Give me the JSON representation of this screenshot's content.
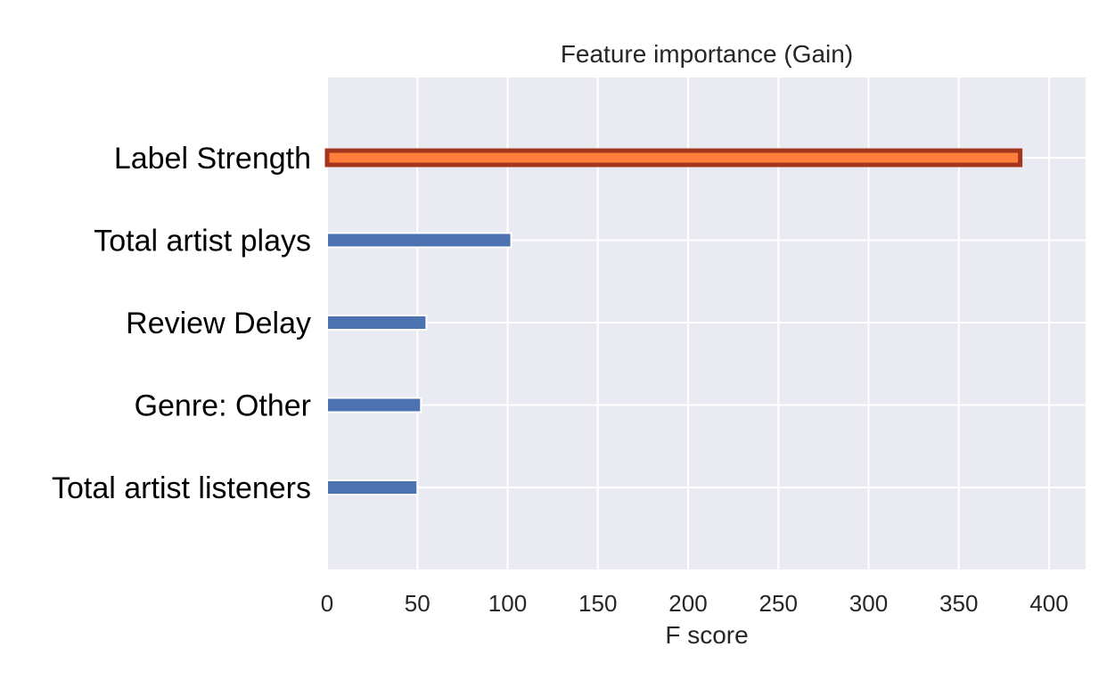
{
  "chart_data": {
    "type": "bar",
    "orientation": "horizontal",
    "title": "Feature importance (Gain)",
    "xlabel": "F score",
    "ylabel": "",
    "xlim": [
      0,
      420
    ],
    "x_ticks": [
      0,
      50,
      100,
      150,
      200,
      250,
      300,
      350,
      400
    ],
    "x_tick_labels": [
      "0",
      "50",
      "100",
      "150",
      "200",
      "250",
      "300",
      "350",
      "400"
    ],
    "categories": [
      "Label Strength",
      "Total artist plays",
      "Review Delay",
      "Genre: Other",
      "Total artist listeners"
    ],
    "values": [
      384,
      102,
      55,
      52,
      50
    ],
    "grid": true,
    "highlight": {
      "category": "Label Strength",
      "fill": "#FF7F3A",
      "stroke": "#A5361E"
    },
    "colors": {
      "bar": "#4C72B0",
      "plot_background": "#EAEAF2",
      "grid": "#FFFFFF",
      "text": "#262626",
      "category_text": "#000000"
    }
  }
}
